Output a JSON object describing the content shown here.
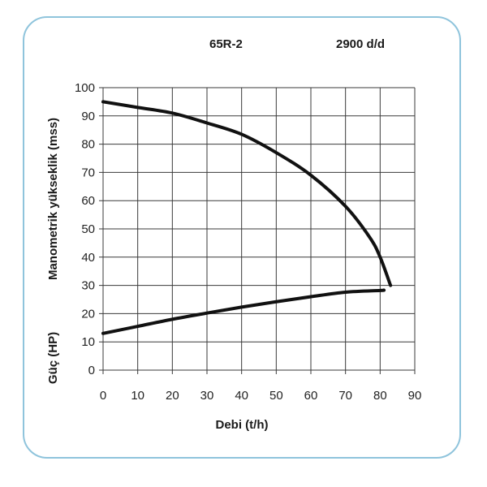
{
  "chart_data": {
    "type": "line",
    "title": "65R-2",
    "subtitle": "2900 d/d",
    "xlabel": "Debi (t/h)",
    "ylabel_primary": "Manometrik yükseklik (mss)",
    "ylabel_secondary": "Güç (HP)",
    "xlim": [
      0,
      90
    ],
    "ylim": [
      0,
      100
    ],
    "x_ticks": [
      "0",
      "10",
      "20",
      "30",
      "40",
      "50",
      "60",
      "70",
      "80",
      "90"
    ],
    "y_ticks": [
      "0",
      "10",
      "20",
      "30",
      "40",
      "50",
      "60",
      "70",
      "80",
      "90",
      "100"
    ],
    "grid": true,
    "series": [
      {
        "name": "",
        "points": [
          [
            0,
            95
          ],
          [
            10,
            93
          ],
          [
            20,
            91
          ],
          [
            30,
            87.5
          ],
          [
            40,
            83.5
          ],
          [
            50,
            77
          ],
          [
            60,
            69
          ],
          [
            70,
            58
          ],
          [
            77,
            47
          ],
          [
            80,
            40
          ],
          [
            83,
            30
          ]
        ]
      },
      {
        "name": "",
        "points": [
          [
            0,
            13
          ],
          [
            10,
            15.5
          ],
          [
            20,
            18
          ],
          [
            30,
            20.2
          ],
          [
            40,
            22.3
          ],
          [
            50,
            24.2
          ],
          [
            60,
            26
          ],
          [
            70,
            27.6
          ],
          [
            80,
            28.2
          ],
          [
            81,
            28.3
          ]
        ]
      }
    ]
  }
}
